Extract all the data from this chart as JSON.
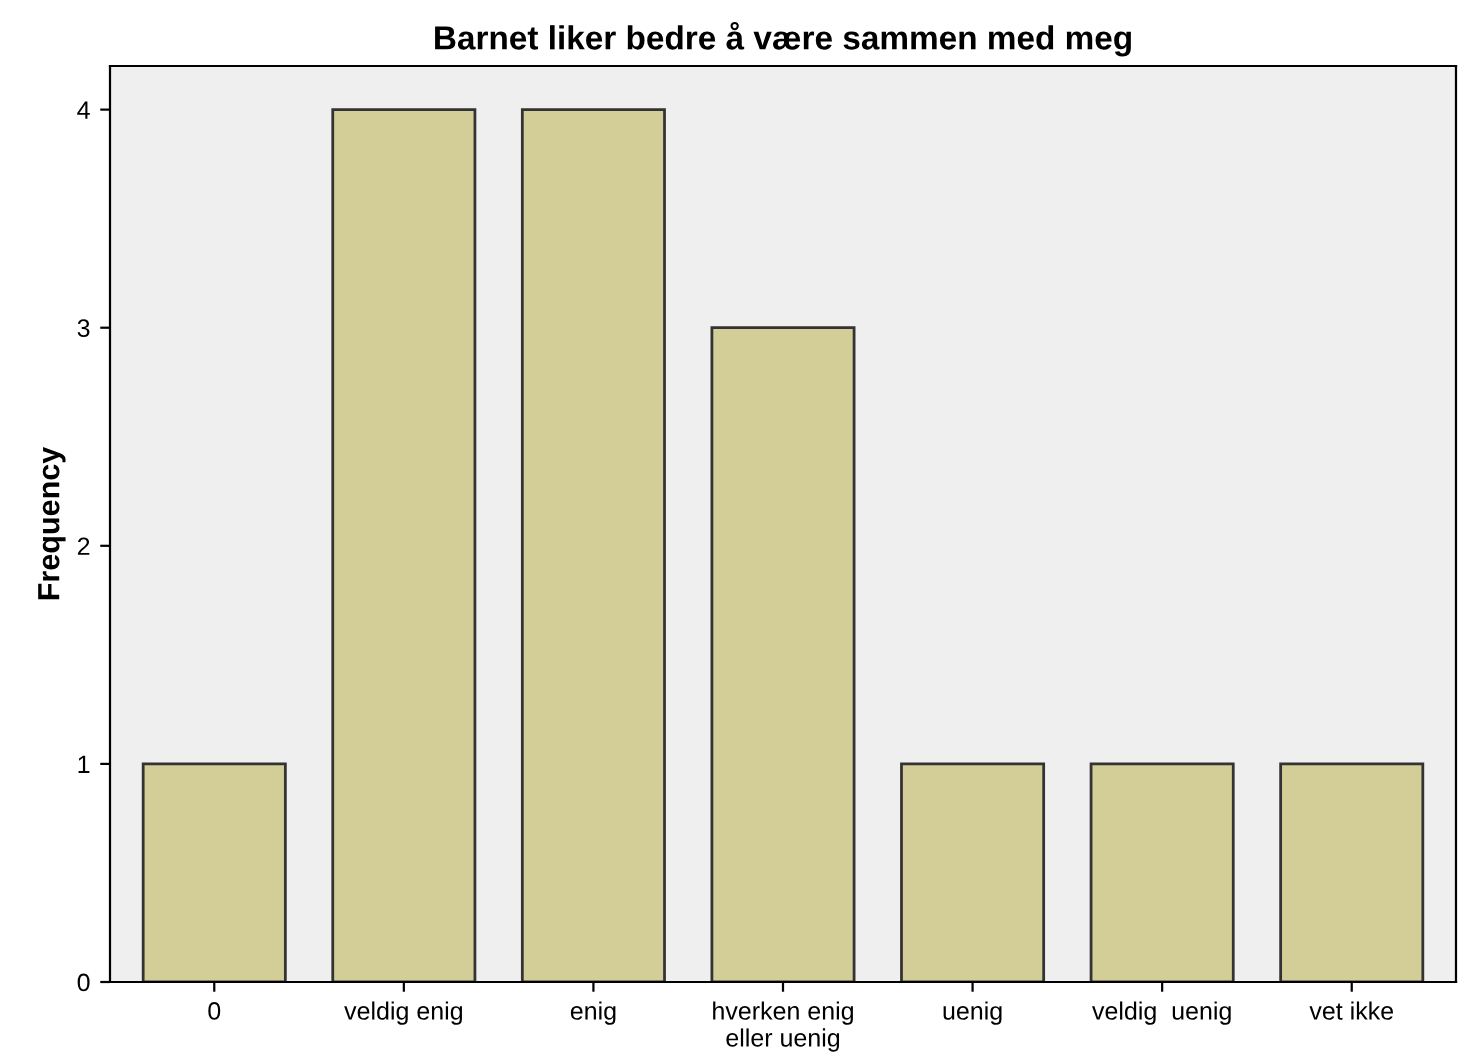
{
  "chart_data": {
    "type": "bar",
    "title": "Barnet liker bedre å være sammen med meg",
    "ylabel": "Frequency",
    "categories": [
      "0",
      "veldig enig",
      "enig",
      "hverken enig\neller uenig",
      "uenig",
      "veldig  uenig",
      "vet ikke"
    ],
    "values": [
      1,
      4,
      4,
      3,
      1,
      1,
      1
    ],
    "color": "#d3ce97",
    "ylim": [
      0,
      4.2
    ],
    "yticks": [
      0,
      1,
      2,
      3,
      4
    ],
    "grid": false
  }
}
